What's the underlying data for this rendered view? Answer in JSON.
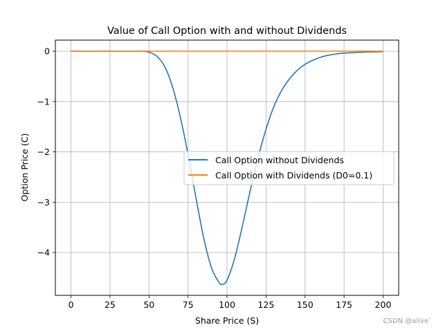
{
  "watermark": "CSDN @alive`",
  "chart_data": {
    "type": "line",
    "title": "Value of Call Option with and without Dividends",
    "xlabel": "Share Price (S)",
    "ylabel": "Option Price (C)",
    "xlim": [
      -10,
      210
    ],
    "ylim": [
      -4.85,
      0.22
    ],
    "xticks": [
      0,
      25,
      50,
      75,
      100,
      125,
      150,
      175,
      200
    ],
    "yticks": [
      0,
      -1,
      -2,
      -3,
      -4
    ],
    "grid": true,
    "legend_position": "center-right",
    "series": [
      {
        "name": "Call Option without Dividends",
        "color": "#1f77b4",
        "x": [
          0,
          10,
          20,
          30,
          40,
          45,
          50,
          55,
          60,
          65,
          70,
          75,
          80,
          85,
          90,
          95,
          97,
          100,
          105,
          110,
          115,
          120,
          125,
          130,
          135,
          140,
          145,
          150,
          155,
          160,
          165,
          170,
          175,
          180,
          190,
          200
        ],
        "y": [
          0,
          0,
          0,
          0,
          0,
          0,
          -0.02,
          -0.1,
          -0.3,
          -0.7,
          -1.3,
          -2.05,
          -2.9,
          -3.7,
          -4.3,
          -4.6,
          -4.63,
          -4.55,
          -4.1,
          -3.45,
          -2.75,
          -2.1,
          -1.55,
          -1.1,
          -0.78,
          -0.55,
          -0.38,
          -0.26,
          -0.18,
          -0.12,
          -0.08,
          -0.055,
          -0.04,
          -0.03,
          -0.015,
          -0.01
        ]
      },
      {
        "name": "Call Option with Dividends (D0=0.1)",
        "color": "#ff7f0e",
        "x": [
          0,
          200
        ],
        "y": [
          0,
          0
        ]
      }
    ]
  }
}
